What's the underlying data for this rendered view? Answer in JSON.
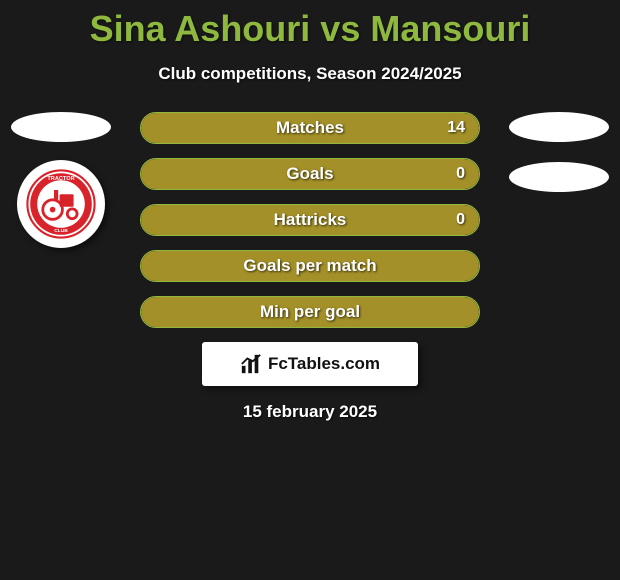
{
  "title": "Sina Ashouri vs Mansouri",
  "subtitle": "Club competitions, Season 2024/2025",
  "left": {
    "player_placeholder": true,
    "club_name": "Tractor",
    "club_logo_bg": "#ffffff",
    "club_logo_primary": "#d8232a"
  },
  "right": {
    "player_placeholder": true,
    "club_placeholder": true
  },
  "stats": [
    {
      "label": "Matches",
      "value": "14",
      "fill_pct": 100,
      "show_value": true
    },
    {
      "label": "Goals",
      "value": "0",
      "fill_pct": 100,
      "show_value": true
    },
    {
      "label": "Hattricks",
      "value": "0",
      "fill_pct": 100,
      "show_value": true
    },
    {
      "label": "Goals per match",
      "value": "",
      "fill_pct": 100,
      "show_value": false
    },
    {
      "label": "Min per goal",
      "value": "",
      "fill_pct": 100,
      "show_value": false
    }
  ],
  "brand": "FcTables.com",
  "date": "15 february 2025",
  "colors": {
    "accent": "#8fb83e",
    "bar_fill": "#a39028",
    "background": "#1a1a1a"
  }
}
